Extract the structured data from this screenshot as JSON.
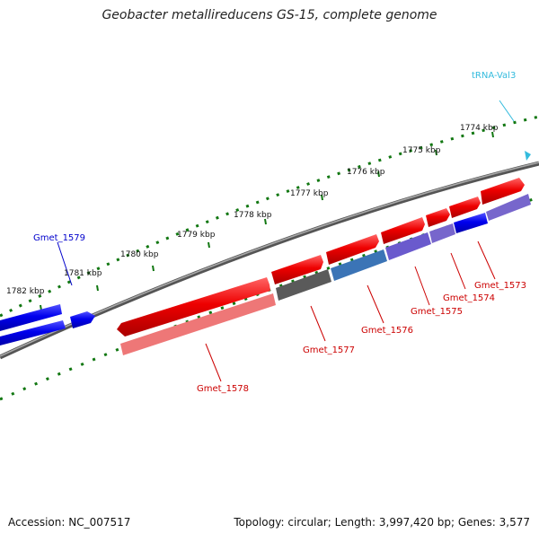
{
  "title": "Geobacter metallireducens GS-15, complete genome",
  "footer": {
    "accession": "Accession: NC_007517",
    "summary": "Topology: circular; Length: 3,997,420 bp; Genes: 3,577"
  },
  "ruler": {
    "unit": "kbp",
    "ticks": [
      "1774 kbp",
      "1775 kbp",
      "1776 kbp",
      "1777 kbp",
      "1778 kbp",
      "1779 kbp",
      "1780 kbp",
      "1781 kbp",
      "1782 kbp"
    ]
  },
  "genes": [
    {
      "name": "Gmet_1573",
      "color": "#cc0000"
    },
    {
      "name": "Gmet_1574",
      "color": "#cc0000"
    },
    {
      "name": "Gmet_1575",
      "color": "#cc0000"
    },
    {
      "name": "Gmet_1576",
      "color": "#cc0000"
    },
    {
      "name": "Gmet_1577",
      "color": "#cc0000"
    },
    {
      "name": "Gmet_1578",
      "color": "#cc0000"
    },
    {
      "name": "Gmet_1579",
      "color": "#0000cc"
    },
    {
      "name": "tRNA-Val3",
      "color": "#33bbdd"
    }
  ],
  "colors": {
    "forward_cds": "#ee0000",
    "reverse_cds": "#0000dd",
    "backbone": "#777777",
    "ruler_ticks": "#117711"
  }
}
